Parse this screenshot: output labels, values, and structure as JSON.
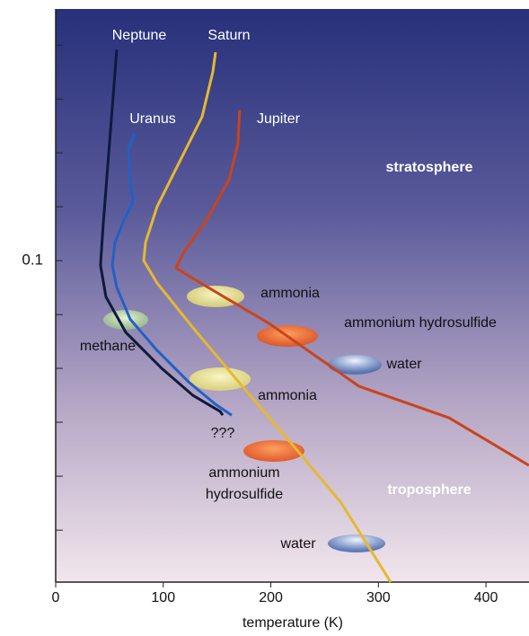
{
  "chart_data": {
    "type": "line",
    "xlabel": "temperature (K)",
    "xlim": [
      0,
      440
    ],
    "xticks": [
      0,
      100,
      200,
      300,
      400
    ],
    "ylim": [
      3.1,
      0.0068
    ],
    "yscale": "log",
    "yticks": [
      0.1
    ],
    "minor_yticks": [
      0.01,
      0.0178,
      0.0316,
      0.0562,
      0.178,
      0.316,
      0.562,
      1,
      1.78
    ],
    "series": [
      {
        "name": "Neptune",
        "color": "#0e1a3c",
        "x": [
          56.8,
          44.2,
          41.7,
          46.7,
          65.1,
          98.5,
          127.7,
          152.8,
          155.3
        ],
        "values": [
          0.0105,
          0.0681,
          0.105,
          0.147,
          0.215,
          0.316,
          0.422,
          0.5,
          0.521
        ]
      },
      {
        "name": "Uranus",
        "color": "#2360c4",
        "x": [
          73.5,
          67.6,
          69.3,
          71.8,
          63.4,
          55.1,
          52.6,
          56.8,
          69.3,
          94.3,
          123.5,
          148.6,
          163.6
        ],
        "values": [
          0.0256,
          0.0302,
          0.0422,
          0.0536,
          0.0649,
          0.0825,
          0.105,
          0.133,
          0.187,
          0.261,
          0.365,
          0.464,
          0.521
        ]
      },
      {
        "name": "Saturn",
        "color": "#e6b832",
        "x": [
          148.6,
          146.1,
          136.1,
          111,
          94.3,
          83.5,
          81.8,
          94.3,
          127.7,
          173.6,
          223.7,
          265.4,
          311.4
        ],
        "values": [
          0.0108,
          0.0133,
          0.0215,
          0.0383,
          0.0562,
          0.0825,
          0.1,
          0.127,
          0.205,
          0.383,
          0.75,
          1.33,
          3.1
        ]
      },
      {
        "name": "Jupiter",
        "color": "#c9441c",
        "x": [
          171.1,
          169.4,
          161.1,
          140.2,
          119.4,
          111.9,
          127.7,
          198.7,
          282.1,
          365.6,
          439.9
        ],
        "values": [
          0.02,
          0.0287,
          0.0422,
          0.0649,
          0.0908,
          0.108,
          0.121,
          0.196,
          0.383,
          0.536,
          0.891
        ]
      }
    ],
    "annotations": [
      {
        "text": "stratosphere"
      },
      {
        "text": "troposphere"
      },
      {
        "text": "ammonia"
      },
      {
        "text": "ammonium hydrosulfide"
      },
      {
        "text": "water"
      },
      {
        "text": "methane"
      },
      {
        "text": "ammonia"
      },
      {
        "text": "???"
      },
      {
        "lines": [
          "ammonium",
          "hydrosulfide"
        ]
      },
      {
        "text": "water"
      }
    ]
  }
}
